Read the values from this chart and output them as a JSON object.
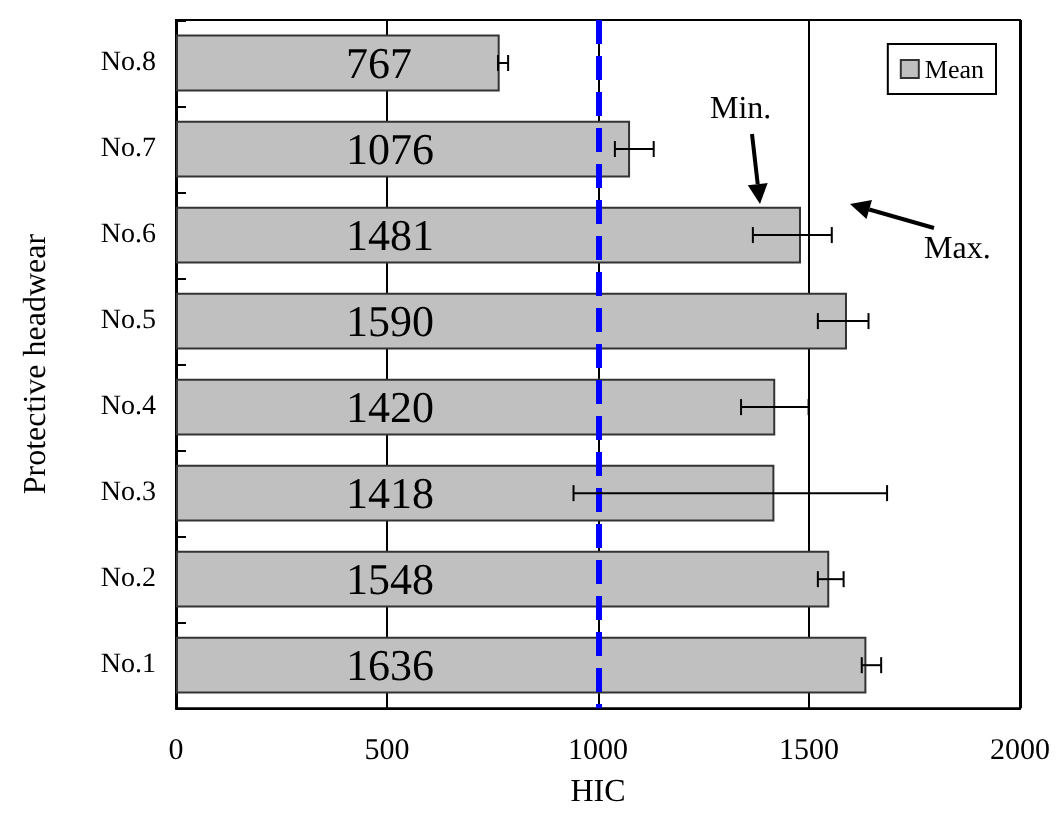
{
  "chart_data": {
    "type": "bar",
    "orientation": "horizontal",
    "xlabel": "HIC",
    "ylabel": "Protective headwear",
    "categories": [
      "No.8",
      "No.7",
      "No.6",
      "No.5",
      "No.4",
      "No.3",
      "No.2",
      "No.1"
    ],
    "series": [
      {
        "name": "Mean",
        "color": "#c0c0c0",
        "values": [
          767,
          1076,
          1481,
          1590,
          1420,
          1418,
          1548,
          1636
        ],
        "errors": [
          [
            763,
            787
          ],
          [
            1040,
            1132
          ],
          [
            1367,
            1554
          ],
          [
            1521,
            1641
          ],
          [
            1339,
            1499
          ],
          [
            942,
            1685
          ],
          [
            1521,
            1582
          ],
          [
            1625,
            1671
          ]
        ]
      }
    ],
    "data_labels": true,
    "xlim": [
      0,
      2000
    ],
    "xticks": [
      0,
      500,
      1000,
      1500,
      2000
    ],
    "grid": "x",
    "legend": "top right",
    "ref_lines": [
      {
        "axis": "x",
        "value": 1000,
        "color": "#0000ff",
        "line_style": "dashed"
      }
    ],
    "annotations": [
      "Min.",
      "Max."
    ]
  }
}
